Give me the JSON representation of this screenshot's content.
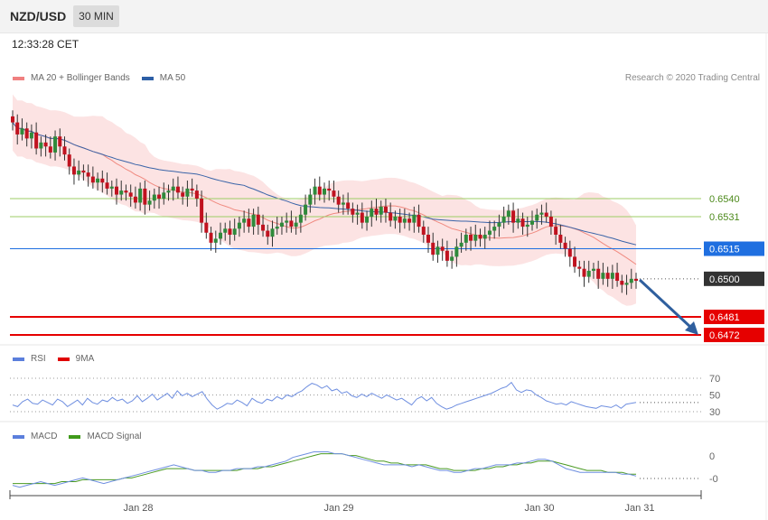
{
  "header": {
    "symbol": "NZD/USD",
    "timeframe": "30 MIN",
    "time": "12:33:28 CET"
  },
  "legend": {
    "price": [
      {
        "label": "MA 20 + Bollinger Bands",
        "color": "#f08080"
      },
      {
        "label": "MA 50",
        "color": "#2d5fa6"
      }
    ],
    "rsi": [
      {
        "label": "RSI",
        "color": "#5b7fdc"
      },
      {
        "label": "9MA",
        "color": "#e00000"
      }
    ],
    "macd": [
      {
        "label": "MACD",
        "color": "#5b7fdc"
      },
      {
        "label": "MACD Signal",
        "color": "#3f9a1a"
      }
    ]
  },
  "credit": "Research © 2020 Trading Central",
  "chart_data": [
    {
      "type": "candlestick",
      "panel": "price",
      "x_tick_labels": [
        "Jan 28",
        "Jan 29",
        "Jan 30",
        "Jan 31"
      ],
      "levels": [
        {
          "value": 0.654,
          "label": "0.6540",
          "style": "resistance",
          "color": "#9ccc65"
        },
        {
          "value": 0.6531,
          "label": "0.6531",
          "style": "resistance",
          "color": "#9ccc65"
        },
        {
          "value": 0.6515,
          "label": "0.6515",
          "style": "pivot",
          "color": "#1f6fe0"
        },
        {
          "value": 0.65,
          "label": "0.6500",
          "style": "last",
          "color": "#333333"
        },
        {
          "value": 0.6481,
          "label": "0.6481",
          "style": "target",
          "color": "#e60000"
        },
        {
          "value": 0.6472,
          "label": "0.6472",
          "style": "target",
          "color": "#e60000"
        }
      ],
      "close": [
        0.6578,
        0.6572,
        0.6575,
        0.657,
        0.6573,
        0.6565,
        0.6568,
        0.6566,
        0.6563,
        0.6571,
        0.6566,
        0.6562,
        0.6556,
        0.6552,
        0.6554,
        0.6553,
        0.6551,
        0.6548,
        0.655,
        0.6548,
        0.6545,
        0.6546,
        0.6542,
        0.6544,
        0.6543,
        0.6541,
        0.6538,
        0.6545,
        0.6537,
        0.6539,
        0.6542,
        0.654,
        0.6543,
        0.6544,
        0.6546,
        0.6543,
        0.6541,
        0.6545,
        0.6544,
        0.654,
        0.6528,
        0.6523,
        0.6518,
        0.652,
        0.6523,
        0.6525,
        0.6522,
        0.6525,
        0.6528,
        0.653,
        0.6526,
        0.6532,
        0.6527,
        0.6524,
        0.6521,
        0.6525,
        0.6526,
        0.6528,
        0.6529,
        0.6526,
        0.6528,
        0.6532,
        0.6537,
        0.6542,
        0.6546,
        0.6542,
        0.6545,
        0.6544,
        0.6541,
        0.6537,
        0.6538,
        0.6535,
        0.6532,
        0.6533,
        0.6528,
        0.6531,
        0.6535,
        0.6532,
        0.6536,
        0.6533,
        0.6529,
        0.6531,
        0.6528,
        0.653,
        0.6528,
        0.6532,
        0.6526,
        0.6522,
        0.6518,
        0.6512,
        0.6516,
        0.6514,
        0.6509,
        0.6511,
        0.6516,
        0.6518,
        0.6522,
        0.6519,
        0.6522,
        0.652,
        0.6522,
        0.6524,
        0.6526,
        0.6528,
        0.6531,
        0.6534,
        0.6528,
        0.653,
        0.6526,
        0.6527,
        0.6529,
        0.6532,
        0.6533,
        0.6531,
        0.6526,
        0.6522,
        0.6518,
        0.6515,
        0.6511,
        0.6506,
        0.6505,
        0.6501,
        0.6504,
        0.6505,
        0.65,
        0.6503,
        0.65,
        0.6503,
        0.6499,
        0.6497,
        0.6498,
        0.65,
        0.6499
      ],
      "ylim": [
        0.6465,
        0.6595
      ]
    },
    {
      "type": "line",
      "panel": "rsi",
      "ticks": [
        "70",
        "50",
        "30"
      ],
      "ylim": [
        20,
        85
      ],
      "series": [
        {
          "name": "RSI",
          "values": [
            38,
            36,
            42,
            45,
            40,
            39,
            44,
            41,
            38,
            45,
            42,
            36,
            40,
            44,
            38,
            46,
            41,
            39,
            44,
            42,
            47,
            43,
            45,
            40,
            43,
            49,
            42,
            46,
            51,
            44,
            48,
            52,
            46,
            55,
            49,
            52,
            48,
            51,
            54,
            45,
            38,
            33,
            36,
            40,
            39,
            44,
            41,
            37,
            46,
            42,
            40,
            45,
            43,
            48,
            45,
            50,
            48,
            52,
            55,
            60,
            64,
            62,
            58,
            61,
            55,
            57,
            52,
            54,
            49,
            47,
            51,
            48,
            52,
            49,
            46,
            50,
            47,
            44,
            46,
            42,
            38,
            45,
            48,
            43,
            47,
            40,
            36,
            33,
            35,
            38,
            40,
            42,
            44,
            46,
            48,
            50,
            52,
            55,
            58,
            60,
            65,
            56,
            53,
            56,
            55,
            50,
            47,
            43,
            41,
            39,
            40,
            38,
            42,
            40,
            38,
            36,
            35,
            34,
            37,
            36,
            35,
            38,
            34,
            39,
            40,
            41
          ]
        }
      ]
    },
    {
      "type": "line",
      "panel": "macd",
      "ticks": [
        "0",
        "-0"
      ],
      "ylim": [
        -0.0012,
        0.0012
      ],
      "series": [
        {
          "name": "MACD",
          "values": [
            -0.001,
            -0.0011,
            -0.001,
            -0.0009,
            -0.0008,
            -0.0009,
            -0.001,
            -0.0009,
            -0.0008,
            -0.0007,
            -0.0006,
            -0.0007,
            -0.0008,
            -0.0009,
            -0.0008,
            -0.0007,
            -0.0006,
            -0.0005,
            -0.0004,
            -0.0003,
            -0.0002,
            -0.0001,
            0.0,
            0.0001,
            0.0,
            -0.0001,
            -0.0002,
            -0.0002,
            -0.0003,
            -0.0003,
            -0.0002,
            -0.0002,
            -0.0001,
            -0.0001,
            -0.0001,
            0.0,
            0.0,
            0.0001,
            0.0002,
            0.0003,
            0.0005,
            0.0006,
            0.0007,
            0.0008,
            0.0008,
            0.0008,
            0.0007,
            0.0007,
            0.0006,
            0.0005,
            0.0004,
            0.0003,
            0.0002,
            0.0001,
            0.0001,
            0.0001,
            0.0001,
            0.0,
            0.0001,
            0.0,
            -0.0001,
            -0.0002,
            -0.0002,
            -0.0003,
            -0.0003,
            -0.0002,
            -0.0001,
            -0.0001,
            0.0,
            0.0001,
            0.0001,
            0.0001,
            0.0002,
            0.0002,
            0.0003,
            0.0004,
            0.0004,
            0.0003,
            0.0001,
            -0.0001,
            -0.0002,
            -0.0003,
            -0.0003,
            -0.0003,
            -0.0003,
            -0.0003,
            -0.0003,
            -0.0004,
            -0.0004,
            -0.0005
          ]
        },
        {
          "name": "MACD Signal",
          "values": [
            -0.0009,
            -0.0009,
            -0.0009,
            -0.0009,
            -0.0009,
            -0.0009,
            -0.0009,
            -0.0008,
            -0.0008,
            -0.0008,
            -0.0007,
            -0.0007,
            -0.0007,
            -0.0007,
            -0.0007,
            -0.0007,
            -0.0006,
            -0.0006,
            -0.0005,
            -0.0004,
            -0.0003,
            -0.0002,
            -0.0001,
            -0.0001,
            -0.0001,
            -0.0001,
            -0.0002,
            -0.0002,
            -0.0002,
            -0.0002,
            -0.0002,
            -0.0002,
            -0.0002,
            -0.0001,
            -0.0001,
            -0.0001,
            0.0,
            0.0,
            0.0001,
            0.0002,
            0.0003,
            0.0004,
            0.0005,
            0.0006,
            0.0007,
            0.0007,
            0.0007,
            0.0007,
            0.0006,
            0.0006,
            0.0005,
            0.0004,
            0.0003,
            0.0003,
            0.0002,
            0.0002,
            0.0001,
            0.0001,
            0.0001,
            0.0001,
            0.0,
            -0.0001,
            -0.0001,
            -0.0002,
            -0.0002,
            -0.0002,
            -0.0002,
            -0.0001,
            -0.0001,
            0.0,
            0.0,
            0.0001,
            0.0001,
            0.0002,
            0.0002,
            0.0003,
            0.0003,
            0.0003,
            0.0002,
            0.0001,
            0.0,
            -0.0001,
            -0.0002,
            -0.0002,
            -0.0002,
            -0.0003,
            -0.0003,
            -0.0003,
            -0.0004,
            -0.0004
          ]
        }
      ]
    }
  ]
}
